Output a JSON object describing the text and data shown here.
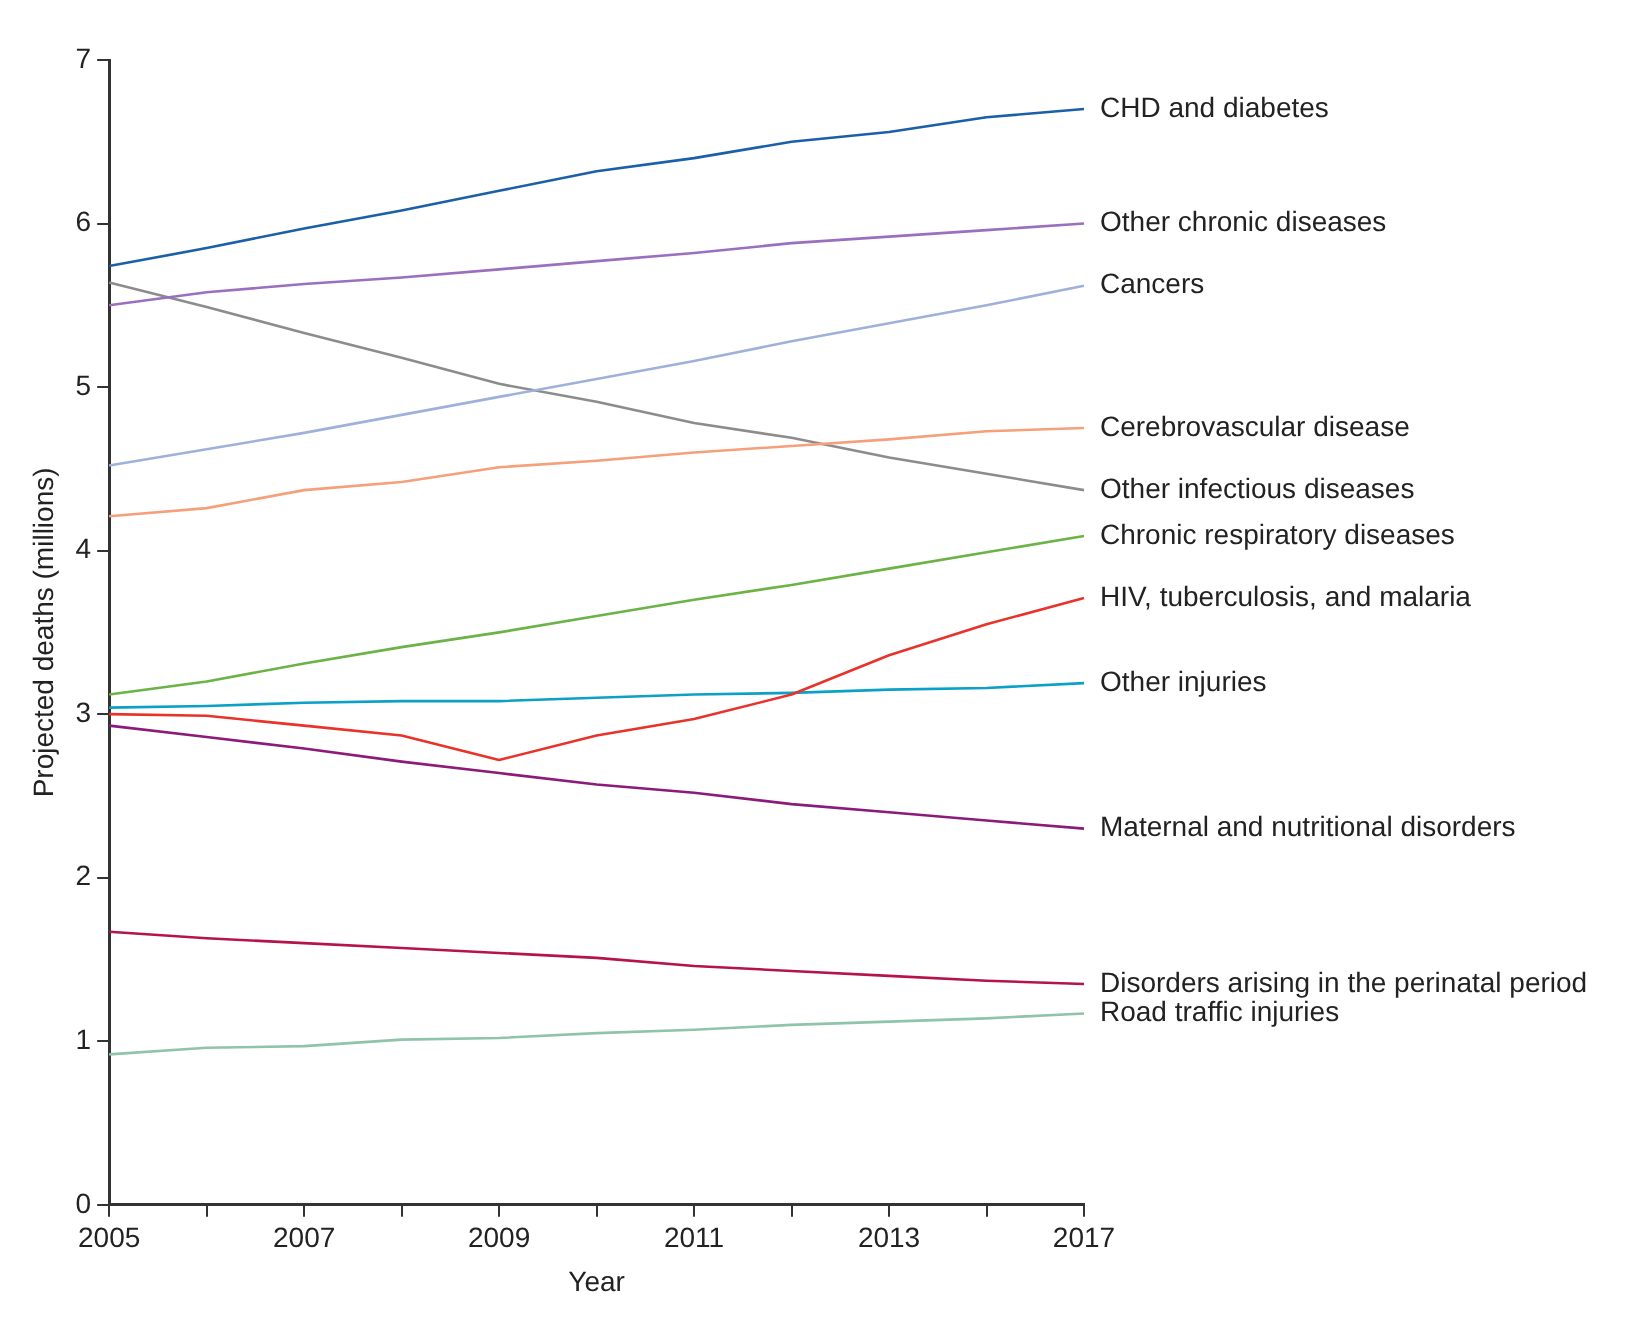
{
  "chart_data": {
    "type": "line",
    "xlabel": "Year",
    "ylabel": "Projected deaths (millions)",
    "categories": [
      "2005",
      null,
      "2007",
      null,
      "2009",
      null,
      "2011",
      null,
      "2013",
      null,
      "2017"
    ],
    "ylim": [
      0,
      7
    ],
    "yticks": [
      0,
      1,
      2,
      3,
      4,
      5,
      6,
      7
    ],
    "grid": false,
    "legend": false,
    "line_style": "solid",
    "series": [
      {
        "name": "CHD and diabetes",
        "color": "#1a5fa8",
        "values": [
          5.74,
          5.85,
          5.97,
          6.08,
          6.2,
          6.32,
          6.4,
          6.5,
          6.56,
          6.65,
          6.7
        ]
      },
      {
        "name": "Other chronic diseases",
        "color": "#9b6fbf",
        "values": [
          5.5,
          5.58,
          5.63,
          5.67,
          5.72,
          5.77,
          5.82,
          5.88,
          5.92,
          5.96,
          6.0
        ]
      },
      {
        "name": "Cancers",
        "color": "#9fb0db",
        "values": [
          4.52,
          4.62,
          4.72,
          4.83,
          4.94,
          5.05,
          5.16,
          5.28,
          5.39,
          5.5,
          5.62
        ]
      },
      {
        "name": "Cerebrovascular disease",
        "color": "#f5a07a",
        "values": [
          4.21,
          4.26,
          4.37,
          4.42,
          4.51,
          4.55,
          4.6,
          4.64,
          4.68,
          4.73,
          4.75
        ]
      },
      {
        "name": "Other infectious diseases",
        "color": "#8c8c8c",
        "values": [
          5.64,
          5.49,
          5.33,
          5.18,
          5.02,
          4.91,
          4.78,
          4.69,
          4.57,
          4.47,
          4.37
        ]
      },
      {
        "name": "Chronic respiratory diseases",
        "color": "#6ab344",
        "values": [
          3.12,
          3.2,
          3.31,
          3.41,
          3.5,
          3.6,
          3.7,
          3.79,
          3.89,
          3.99,
          4.09
        ]
      },
      {
        "name": "HIV, tuberculosis, and malaria",
        "color": "#e8322a",
        "values": [
          3.0,
          2.99,
          2.93,
          2.87,
          2.72,
          2.87,
          2.97,
          3.12,
          3.36,
          3.55,
          3.71
        ]
      },
      {
        "name": "Other injuries",
        "color": "#0aa0c8",
        "values": [
          3.04,
          3.05,
          3.07,
          3.08,
          3.08,
          3.1,
          3.12,
          3.13,
          3.15,
          3.16,
          3.19
        ]
      },
      {
        "name": "Maternal and nutritional disorders",
        "color": "#8b1a7a",
        "values": [
          2.93,
          2.86,
          2.79,
          2.71,
          2.64,
          2.57,
          2.52,
          2.45,
          2.4,
          2.35,
          2.3
        ]
      },
      {
        "name": "Disorders arising in the perinatal period",
        "color": "#b5134b",
        "values": [
          1.67,
          1.63,
          1.6,
          1.57,
          1.54,
          1.51,
          1.46,
          1.43,
          1.4,
          1.37,
          1.35
        ]
      },
      {
        "name": "Road traffic injuries",
        "color": "#8fc4a8",
        "values": [
          0.92,
          0.96,
          0.97,
          1.01,
          1.02,
          1.05,
          1.07,
          1.1,
          1.12,
          1.14,
          1.17
        ]
      }
    ]
  }
}
